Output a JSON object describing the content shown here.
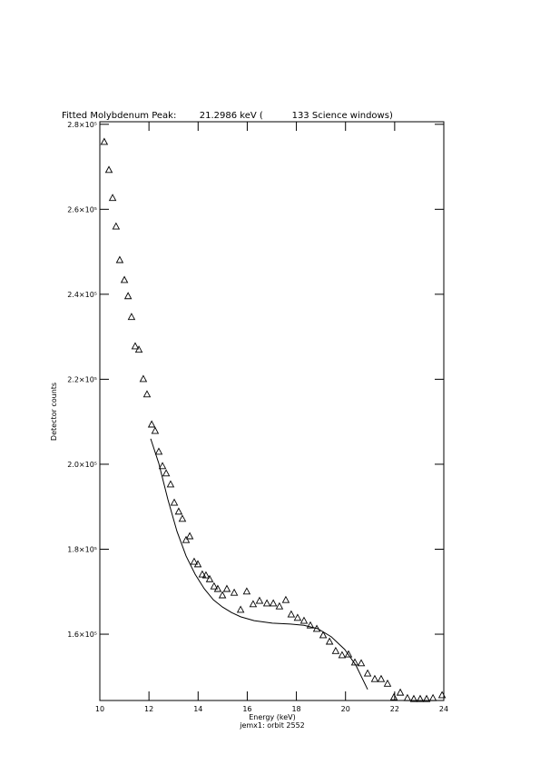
{
  "chart_data": {
    "type": "scatter",
    "title": "Fitted Molybdenum Peak:        21.2986 keV (          133 Science windows)",
    "subtitle": "jemx1: orbit 2552",
    "xlabel": "Energy (keV)",
    "ylabel": "Detector counts",
    "xlim": [
      10,
      24
    ],
    "ylim": [
      144400,
      280600
    ],
    "xticks": [
      10,
      12,
      14,
      16,
      18,
      20,
      22,
      24
    ],
    "yticks": [
      {
        "value": 160000,
        "label": "1.6×10⁵"
      },
      {
        "value": 180000,
        "label": "1.8×10⁵"
      },
      {
        "value": 200000,
        "label": "2.0×10⁵"
      },
      {
        "value": 220000,
        "label": "2.2×10⁵"
      },
      {
        "value": 240000,
        "label": "2.4×10⁵"
      },
      {
        "value": 260000,
        "label": "2.6×10⁵"
      },
      {
        "value": 280000,
        "label": "2.8×10⁵"
      }
    ],
    "grid": false,
    "series": [
      {
        "style": "markers",
        "marker": "triangle",
        "color": "#000000",
        "x": [
          10.18,
          10.37,
          10.52,
          10.66,
          10.81,
          11.0,
          11.15,
          11.29,
          11.44,
          11.59,
          11.77,
          11.92,
          12.11,
          12.25,
          12.4,
          12.55,
          12.7,
          12.88,
          13.03,
          13.21,
          13.36,
          13.51,
          13.66,
          13.84,
          13.99,
          14.17,
          14.32,
          14.47,
          14.65,
          14.8,
          14.99,
          15.17,
          15.47,
          15.73,
          15.98,
          16.24,
          16.5,
          16.8,
          17.06,
          17.31,
          17.57,
          17.79,
          18.05,
          18.31,
          18.57,
          18.83,
          19.09,
          19.35,
          19.6,
          19.86,
          20.12,
          20.38,
          20.64,
          20.9,
          21.19,
          21.45,
          21.71,
          21.97,
          22.23,
          22.52,
          22.78,
          23.04,
          23.3,
          23.56,
          23.93
        ],
        "values": [
          275900,
          269300,
          262700,
          256000,
          248100,
          243400,
          239600,
          234700,
          227800,
          227000,
          220100,
          216500,
          209400,
          207900,
          203000,
          199600,
          197900,
          195300,
          191000,
          188900,
          187200,
          182200,
          183100,
          177100,
          176500,
          174100,
          173900,
          173000,
          171300,
          170700,
          169200,
          170700,
          169800,
          165800,
          170100,
          167100,
          167900,
          167300,
          167300,
          166600,
          168100,
          164700,
          163900,
          163200,
          162100,
          161300,
          159800,
          158300,
          156100,
          155100,
          155300,
          153400,
          153200,
          150800,
          149500,
          149500,
          148400,
          145200,
          146300,
          145000,
          144800,
          144800,
          144800,
          145000,
          145700
        ]
      },
      {
        "style": "line",
        "color": "#000000",
        "x": [
          12.07,
          12.4,
          12.77,
          13.14,
          13.51,
          13.88,
          14.25,
          14.62,
          14.99,
          15.36,
          15.73,
          16.28,
          17.02,
          17.76,
          18.31,
          18.87,
          19.42,
          19.97,
          20.42,
          20.9
        ],
        "values": [
          206000,
          200200,
          191700,
          184200,
          178400,
          174100,
          170700,
          168100,
          166400,
          165100,
          164100,
          163200,
          162600,
          162400,
          162100,
          161300,
          159400,
          156400,
          152700,
          147000
        ]
      }
    ]
  }
}
